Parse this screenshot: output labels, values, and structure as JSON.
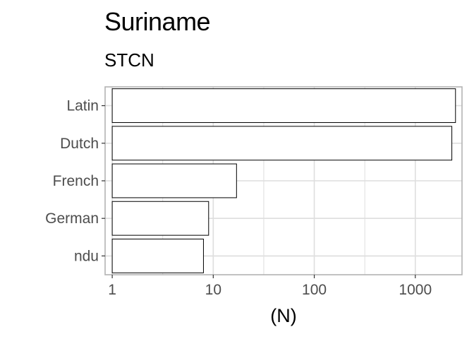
{
  "chart_data": {
    "type": "bar",
    "orientation": "horizontal",
    "title": "Suriname",
    "subtitle": "STCN",
    "xlabel": "(N)",
    "ylabel": "",
    "x_scale": "log10",
    "xlim": [
      0.85,
      2900
    ],
    "x_ticks": [
      1,
      10,
      100,
      1000
    ],
    "x_tick_labels": [
      "1",
      "10",
      "100",
      "1000"
    ],
    "categories": [
      "Latin",
      "Dutch",
      "French",
      "German",
      "ndu"
    ],
    "values": [
      2500,
      2300,
      17,
      9,
      8
    ],
    "grid": true,
    "legend": "none",
    "colors": {
      "bar_fill": "#ffffff",
      "bar_stroke": "#000000",
      "grid": "#dedede",
      "panel_border": "#b3b3b3",
      "tick_text": "#4d4d4d"
    }
  }
}
